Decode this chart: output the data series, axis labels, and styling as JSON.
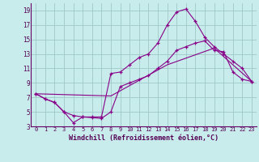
{
  "xlabel": "Windchill (Refroidissement éolien,°C)",
  "background_color": "#c8ecec",
  "grid_color": "#a0c8c8",
  "line_color": "#880088",
  "xlim": [
    0,
    23
  ],
  "ylim": [
    3,
    20
  ],
  "xticks": [
    0,
    1,
    2,
    3,
    4,
    5,
    6,
    7,
    8,
    9,
    10,
    11,
    12,
    13,
    14,
    15,
    16,
    17,
    18,
    19,
    20,
    21,
    22,
    23
  ],
  "yticks": [
    3,
    5,
    7,
    9,
    11,
    13,
    15,
    17,
    19
  ],
  "line_peak_x": [
    0,
    1,
    2,
    3,
    4,
    5,
    6,
    7,
    8,
    9,
    10,
    11,
    12,
    13,
    14,
    15,
    16,
    17,
    18,
    19,
    20,
    21,
    22,
    23
  ],
  "line_peak_y": [
    7.5,
    6.8,
    6.3,
    5.0,
    3.5,
    4.3,
    4.3,
    4.3,
    10.3,
    10.5,
    11.5,
    12.5,
    13.0,
    14.5,
    17.0,
    18.8,
    19.2,
    17.5,
    15.3,
    14.0,
    13.0,
    12.0,
    11.0,
    9.2
  ],
  "line_wave_x": [
    0,
    1,
    2,
    3,
    4,
    5,
    6,
    7,
    8,
    9,
    10,
    11,
    12,
    13,
    14,
    15,
    16,
    17,
    18,
    19,
    20,
    21,
    22,
    23
  ],
  "line_wave_y": [
    7.5,
    6.8,
    6.3,
    5.0,
    4.5,
    4.3,
    4.2,
    4.1,
    5.0,
    8.5,
    9.0,
    9.5,
    10.0,
    11.0,
    12.0,
    13.5,
    14.0,
    14.5,
    14.8,
    13.5,
    13.3,
    10.5,
    9.5,
    9.2
  ],
  "line_diag_x": [
    0,
    8,
    14,
    19,
    23
  ],
  "line_diag_y": [
    7.5,
    7.2,
    11.5,
    13.8,
    9.2
  ]
}
